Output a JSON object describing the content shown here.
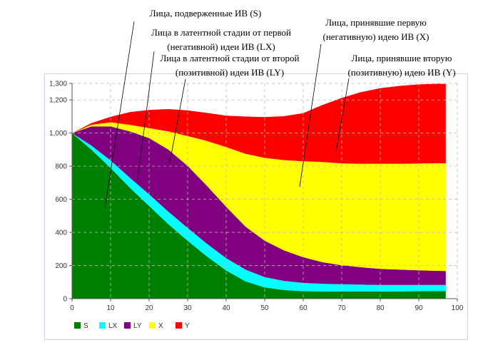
{
  "chart_data": {
    "type": "area",
    "stacked": true,
    "x": [
      0,
      5,
      10,
      15,
      20,
      25,
      30,
      35,
      40,
      45,
      50,
      55,
      60,
      65,
      70,
      75,
      80,
      85,
      90,
      95,
      97
    ],
    "series": [
      {
        "name": "S",
        "color": "#008000",
        "values": [
          1000,
          900,
          790,
          670,
          560,
          450,
          350,
          255,
          170,
          105,
          68,
          52,
          45,
          44,
          43,
          43,
          43,
          44,
          45,
          46,
          46
        ]
      },
      {
        "name": "LX",
        "color": "#00ffff",
        "values": [
          0,
          25,
          45,
          60,
          70,
          75,
          77,
          77,
          75,
          70,
          62,
          55,
          50,
          46,
          44,
          42,
          40,
          39,
          38,
          37,
          37
        ]
      },
      {
        "name": "LY",
        "color": "#800080",
        "values": [
          0,
          115,
          205,
          280,
          340,
          375,
          375,
          350,
          310,
          260,
          220,
          185,
          155,
          130,
          115,
          105,
          97,
          92,
          88,
          85,
          84
        ]
      },
      {
        "name": "X",
        "color": "#ffff00",
        "values": [
          0,
          10,
          25,
          40,
          60,
          110,
          180,
          270,
          360,
          440,
          500,
          545,
          580,
          605,
          615,
          625,
          635,
          640,
          645,
          650,
          650
        ]
      },
      {
        "name": "Y",
        "color": "#ff0000",
        "values": [
          0,
          10,
          33,
          77,
          110,
          135,
          155,
          170,
          190,
          225,
          247,
          265,
          290,
          345,
          395,
          432,
          456,
          470,
          478,
          480,
          480
        ]
      }
    ],
    "xlim": [
      0,
      100
    ],
    "ylim": [
      0,
      1300
    ],
    "x_ticks": [
      0,
      10,
      20,
      30,
      40,
      50,
      60,
      70,
      80,
      90,
      100
    ],
    "y_ticks": [
      0,
      200,
      400,
      600,
      800,
      1000,
      1200,
      1300
    ],
    "y_tick_labels": [
      "0",
      "200",
      "400",
      "600",
      "800",
      "1,000",
      "1,200",
      "1,300"
    ],
    "grid": true,
    "legend_position": "bottom-left",
    "annotations": [
      {
        "lines": [
          "Лица, подверженные ИВ (S)"
        ],
        "series": "S"
      },
      {
        "lines": [
          "Лица в латентной стадии от первой",
          "(негативной) идеи ИВ (LX)"
        ],
        "series": "LX"
      },
      {
        "lines": [
          "Лица в латентной стадии от второй",
          "(позитивной) идеи ИВ  (LY)"
        ],
        "series": "LY"
      },
      {
        "lines": [
          "Лица, принявшие первую",
          "(негативную) идею ИВ (X)"
        ],
        "series": "X"
      },
      {
        "lines": [
          "Лица, принявшие вторую",
          "(позитивную) идею ИВ (Y)"
        ],
        "series": "Y"
      }
    ]
  }
}
